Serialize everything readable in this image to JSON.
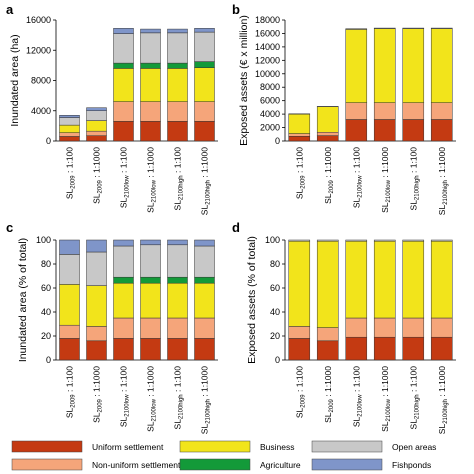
{
  "colors": {
    "Uniform settlement": "#c43a12",
    "Non-uniform settlement": "#f5a57a",
    "Business": "#f2e41b",
    "Agriculture": "#139a39",
    "Open areas": "#c8c8c8",
    "Fishponds": "#7f95c9"
  },
  "legend": [
    "Uniform settlement",
    "Business",
    "Open areas",
    "Non-uniform settlement",
    "Agriculture",
    "Fishponds"
  ],
  "categories": [
    {
      "main": "SL",
      "sub": "2009",
      "suffix": " : 1:100"
    },
    {
      "main": "SL",
      "sub": "2009",
      "suffix": " : 1:1000"
    },
    {
      "main": "SL",
      "sub": "2100low",
      "suffix": " : 1:100"
    },
    {
      "main": "SL",
      "sub": "2100low",
      "suffix": " : 1:1000"
    },
    {
      "main": "SL",
      "sub": "2100high",
      "suffix": " : 1:100"
    },
    {
      "main": "SL",
      "sub": "2100high",
      "suffix": " : 1:1000"
    }
  ],
  "chart_data": [
    {
      "panel": "a",
      "type": "bar",
      "stacked": true,
      "ylabel": "Inundated area (ha)",
      "ylim": [
        0,
        16000
      ],
      "yticks": [
        0,
        4000,
        8000,
        12000,
        16000
      ],
      "series": [
        {
          "name": "Uniform settlement",
          "values": [
            600,
            700,
            2600,
            2600,
            2600,
            2600
          ]
        },
        {
          "name": "Non-uniform settlement",
          "values": [
            500,
            600,
            2600,
            2600,
            2600,
            2600
          ]
        },
        {
          "name": "Business",
          "values": [
            1000,
            1400,
            4400,
            4400,
            4400,
            4500
          ]
        },
        {
          "name": "Agriculture",
          "values": [
            0,
            0,
            700,
            700,
            700,
            800
          ]
        },
        {
          "name": "Open areas",
          "values": [
            1000,
            1300,
            3900,
            4000,
            4000,
            3900
          ]
        },
        {
          "name": "Fishponds",
          "values": [
            300,
            400,
            700,
            500,
            500,
            500
          ]
        }
      ]
    },
    {
      "panel": "b",
      "type": "bar",
      "stacked": true,
      "ylabel": "Exposed assets (€ x million)",
      "ylim": [
        0,
        18000
      ],
      "yticks": [
        0,
        2000,
        4000,
        6000,
        8000,
        10000,
        12000,
        14000,
        16000,
        18000
      ],
      "series": [
        {
          "name": "Uniform settlement",
          "values": [
            700,
            800,
            3200,
            3200,
            3200,
            3200
          ]
        },
        {
          "name": "Non-uniform settlement",
          "values": [
            400,
            500,
            2500,
            2500,
            2500,
            2500
          ]
        },
        {
          "name": "Business",
          "values": [
            2900,
            3800,
            10900,
            11000,
            11000,
            11000
          ]
        },
        {
          "name": "Agriculture",
          "values": [
            0,
            0,
            0,
            0,
            0,
            0
          ]
        },
        {
          "name": "Open areas",
          "values": [
            50,
            50,
            100,
            100,
            100,
            100
          ]
        },
        {
          "name": "Fishponds",
          "values": [
            0,
            0,
            0,
            0,
            0,
            0
          ]
        }
      ]
    },
    {
      "panel": "c",
      "type": "bar",
      "stacked": true,
      "ylabel": "Inundated area (% of total)",
      "ylim": [
        0,
        100
      ],
      "yticks": [
        0,
        20,
        40,
        60,
        80,
        100
      ],
      "series": [
        {
          "name": "Uniform settlement",
          "values": [
            18,
            16,
            18,
            18,
            18,
            18
          ]
        },
        {
          "name": "Non-uniform settlement",
          "values": [
            11,
            12,
            17,
            17,
            17,
            17
          ]
        },
        {
          "name": "Business",
          "values": [
            34,
            34,
            29,
            29,
            29,
            29
          ]
        },
        {
          "name": "Agriculture",
          "values": [
            0,
            0,
            5,
            5,
            5,
            5
          ]
        },
        {
          "name": "Open areas",
          "values": [
            25,
            28,
            26,
            27,
            27,
            26
          ]
        },
        {
          "name": "Fishponds",
          "values": [
            12,
            10,
            5,
            4,
            4,
            5
          ]
        }
      ]
    },
    {
      "panel": "d",
      "type": "bar",
      "stacked": true,
      "ylabel": "Exposed assets (% of total)",
      "ylim": [
        0,
        100
      ],
      "yticks": [
        0,
        20,
        40,
        60,
        80,
        100
      ],
      "series": [
        {
          "name": "Uniform settlement",
          "values": [
            18,
            16,
            19,
            19,
            19,
            19
          ]
        },
        {
          "name": "Non-uniform settlement",
          "values": [
            10,
            11,
            16,
            16,
            16,
            16
          ]
        },
        {
          "name": "Business",
          "values": [
            71,
            72,
            64,
            64,
            64,
            64
          ]
        },
        {
          "name": "Agriculture",
          "values": [
            0,
            0,
            0,
            0,
            0,
            0
          ]
        },
        {
          "name": "Open areas",
          "values": [
            1,
            1,
            1,
            1,
            1,
            1
          ]
        },
        {
          "name": "Fishponds",
          "values": [
            0,
            0,
            0,
            0,
            0,
            0
          ]
        }
      ]
    }
  ]
}
